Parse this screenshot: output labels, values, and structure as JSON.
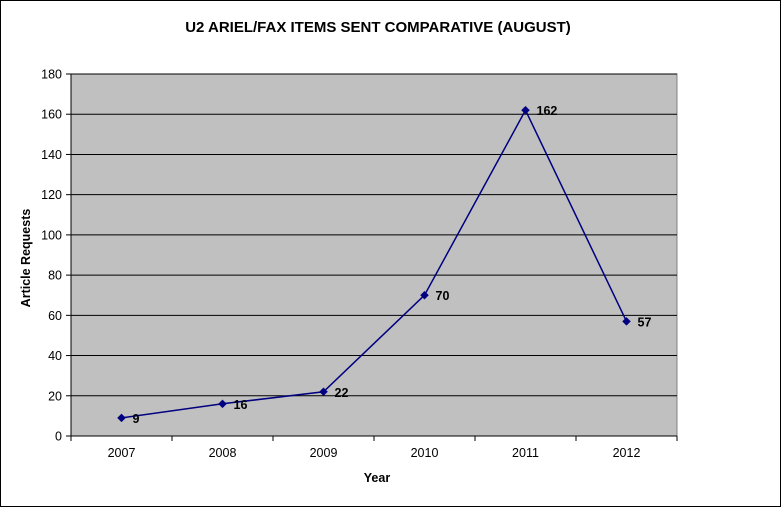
{
  "chart_data": {
    "type": "line",
    "title": "U2 ARIEL/FAX ITEMS SENT COMPARATIVE (AUGUST)",
    "xlabel": "Year",
    "ylabel": "Article Requests",
    "categories": [
      "2007",
      "2008",
      "2009",
      "2010",
      "2011",
      "2012"
    ],
    "series": [
      {
        "values": [
          9,
          16,
          22,
          70,
          162,
          57
        ],
        "labels": [
          "9",
          "16",
          "22",
          "70",
          "162",
          "57"
        ]
      }
    ],
    "ylim": [
      0,
      180
    ],
    "yticks": [
      "0",
      "20",
      "40",
      "60",
      "80",
      "100",
      "120",
      "140",
      "160",
      "180"
    ],
    "grid": true,
    "legend": "none",
    "colors": {
      "line": "#000080",
      "plot_background": "#c0c0c0",
      "grid": "#000000"
    }
  }
}
